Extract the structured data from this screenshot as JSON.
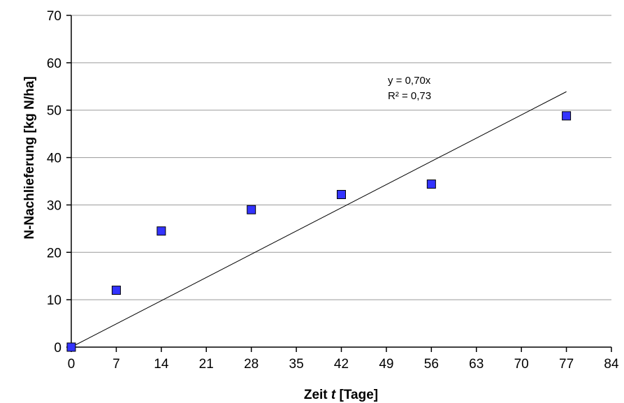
{
  "chart_data": {
    "type": "scatter",
    "xlabel_prefix": "Zeit ",
    "xlabel_var": "t",
    "xlabel_suffix": " [Tage]",
    "ylabel": "N-Nachlieferung [kg N/ha]",
    "xlim": [
      0,
      84
    ],
    "ylim": [
      0,
      70
    ],
    "x_ticks": [
      "0",
      "7",
      "14",
      "21",
      "28",
      "35",
      "42",
      "49",
      "56",
      "63",
      "70",
      "77",
      "84"
    ],
    "y_ticks": [
      "0",
      "10",
      "20",
      "30",
      "40",
      "50",
      "60",
      "70"
    ],
    "grid": "horizontal",
    "series": [
      {
        "x": [
          0,
          7,
          14,
          28,
          42,
          56,
          77
        ],
        "y": [
          0,
          12.0,
          24.5,
          29.0,
          32.2,
          34.4,
          48.8
        ],
        "color": "#3333ff"
      }
    ],
    "trendline": {
      "slope": 0.7,
      "x_range": [
        0,
        77
      ],
      "equation": "y = 0,70x",
      "r_squared": "R² = 0,73"
    }
  }
}
